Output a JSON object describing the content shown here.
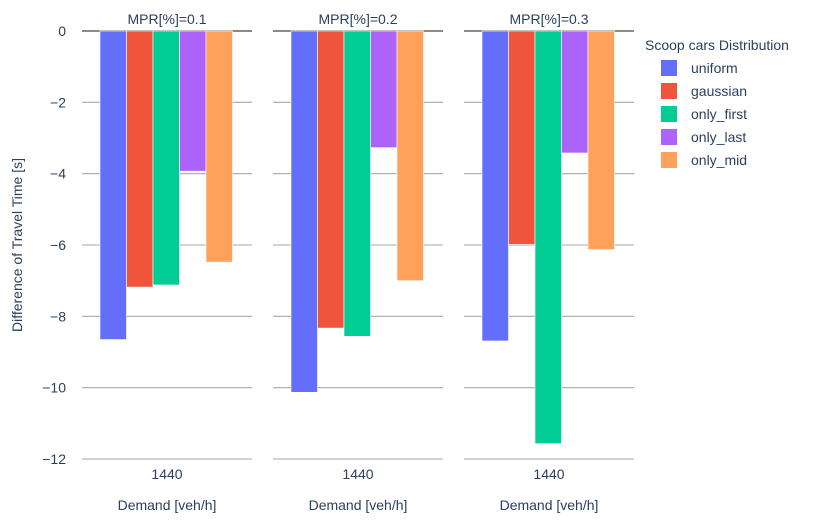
{
  "chart_data": {
    "type": "bar",
    "panels": [
      {
        "title": "MPR[%]=0.1",
        "category": "1440",
        "xlabel": "Demand [veh/h]",
        "values": [
          -8.65,
          -7.18,
          -7.12,
          -3.93,
          -6.48
        ]
      },
      {
        "title": "MPR[%]=0.2",
        "category": "1440",
        "xlabel": "Demand [veh/h]",
        "values": [
          -10.13,
          -8.33,
          -8.56,
          -3.27,
          -7.0
        ]
      },
      {
        "title": "MPR[%]=0.3",
        "category": "1440",
        "xlabel": "Demand [veh/h]",
        "values": [
          -8.69,
          -5.98,
          -11.57,
          -3.42,
          -6.13
        ]
      }
    ],
    "series": [
      {
        "name": "uniform",
        "color": "#636efa"
      },
      {
        "name": "gaussian",
        "color": "#ef553b"
      },
      {
        "name": "only_first",
        "color": "#00cc96"
      },
      {
        "name": "only_last",
        "color": "#ab63fa"
      },
      {
        "name": "only_mid",
        "color": "#ffa15a"
      }
    ],
    "ylabel": "Difference of Travel Time [s]",
    "ylim": [
      -12,
      0
    ],
    "yticks": [
      0,
      -2,
      -4,
      -6,
      -8,
      -10,
      -12
    ],
    "ytick_labels": [
      "0",
      "−2",
      "−4",
      "−6",
      "−8",
      "−10",
      "−12"
    ],
    "legend": {
      "title": "Scoop cars Distribution",
      "position": "right"
    },
    "grid": true
  }
}
